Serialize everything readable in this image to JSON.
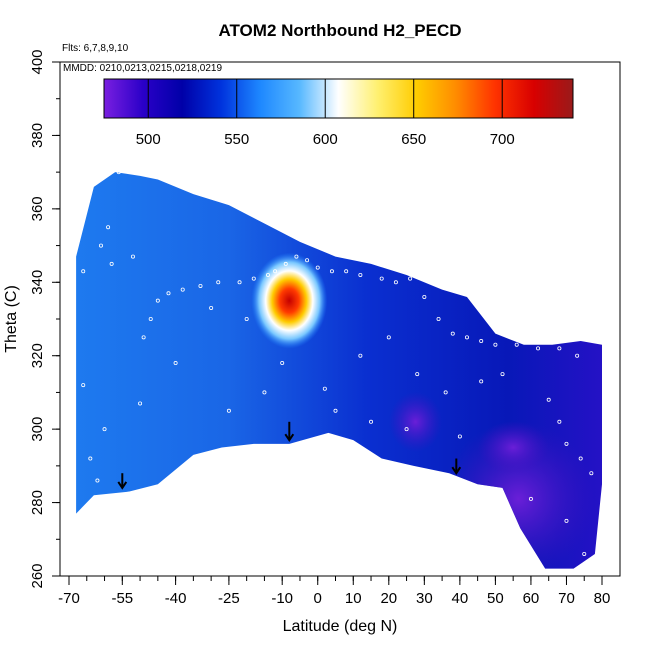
{
  "chart_data": {
    "type": "heatmap",
    "title": "ATOM2 Northbound H2_PECD",
    "flights_note": "Flts: 6,7,8,9,10",
    "dates_note": "MMDD: 0210,0213,0215,0218,0219",
    "xlabel": "Latitude (deg N)",
    "ylabel": "Theta (C)",
    "xlim": [
      -70,
      80
    ],
    "ylim": [
      260,
      400
    ],
    "x_tick_labels": [
      "-70",
      "-55",
      "-40",
      "-25",
      "-10",
      "0",
      "10",
      "20",
      "30",
      "40",
      "50",
      "60",
      "70",
      "80"
    ],
    "x_tick_values": [
      -70,
      -55,
      -40,
      -25,
      -10,
      0,
      10,
      20,
      30,
      40,
      50,
      60,
      70,
      80
    ],
    "y_tick_values": [
      260,
      280,
      300,
      320,
      340,
      360,
      380,
      400
    ],
    "y_tick_labels": [
      "260",
      "280",
      "300",
      "320",
      "340",
      "360",
      "380",
      "400"
    ],
    "colorbar": {
      "range": [
        475,
        740
      ],
      "tick_values": [
        500,
        550,
        600,
        650,
        700
      ],
      "tick_labels": [
        "500",
        "550",
        "600",
        "650",
        "700"
      ],
      "colors": [
        "#7a1fe0",
        "#2a00c8",
        "#0000a8",
        "#0033dd",
        "#1e88ff",
        "#57b8ff",
        "#ffffff",
        "#fff070",
        "#ffcc00",
        "#ff8c00",
        "#ff3300",
        "#d80000",
        "#9a1a1a"
      ]
    },
    "field": {
      "background_value": 535,
      "hotspot": {
        "lat": -8,
        "theta": 335,
        "peak_value": 705
      },
      "low_regions": [
        {
          "lat_range": [
            20,
            35
          ],
          "theta_range": [
            296,
            308
          ],
          "value": 492
        },
        {
          "lat_range": [
            35,
            78
          ],
          "theta_range": [
            262,
            300
          ],
          "value": 495
        },
        {
          "lat_range": [
            45,
            65
          ],
          "theta_range": [
            290,
            300
          ],
          "value": 500
        }
      ]
    },
    "coverage_boundary": [
      [
        -68,
        277
      ],
      [
        -63,
        282
      ],
      [
        -53,
        283
      ],
      [
        -45,
        285
      ],
      [
        -35,
        293
      ],
      [
        -27,
        295
      ],
      [
        -18,
        296
      ],
      [
        -8,
        296
      ],
      [
        3,
        299
      ],
      [
        10,
        297
      ],
      [
        18,
        292
      ],
      [
        27,
        290
      ],
      [
        37,
        288
      ],
      [
        45,
        285
      ],
      [
        52,
        284
      ],
      [
        57,
        273
      ],
      [
        64,
        262
      ],
      [
        72,
        262
      ],
      [
        78,
        266
      ],
      [
        80,
        285
      ],
      [
        80,
        323
      ],
      [
        74,
        324
      ],
      [
        66,
        323
      ],
      [
        58,
        323
      ],
      [
        50,
        326
      ],
      [
        42,
        336
      ],
      [
        35,
        338
      ],
      [
        25,
        342
      ],
      [
        15,
        345
      ],
      [
        5,
        347
      ],
      [
        -5,
        351
      ],
      [
        -15,
        356
      ],
      [
        -25,
        361
      ],
      [
        -35,
        364
      ],
      [
        -45,
        368
      ],
      [
        -50,
        369
      ],
      [
        -57,
        370
      ],
      [
        -63,
        366
      ],
      [
        -68,
        347
      ]
    ],
    "arrows": [
      {
        "lat": -55,
        "theta_top": 288,
        "theta_tip": 284
      },
      {
        "lat": -8,
        "theta_top": 302,
        "theta_tip": 297
      },
      {
        "lat": 39,
        "theta_top": 292,
        "theta_tip": 288
      }
    ],
    "sample_points": [
      [
        -66,
        343
      ],
      [
        -58,
        345
      ],
      [
        -52,
        347
      ],
      [
        -56,
        370
      ],
      [
        -59,
        355
      ],
      [
        -61,
        350
      ],
      [
        -49,
        325
      ],
      [
        -47,
        330
      ],
      [
        -45,
        335
      ],
      [
        -42,
        337
      ],
      [
        -38,
        338
      ],
      [
        -33,
        339
      ],
      [
        -28,
        340
      ],
      [
        -22,
        340
      ],
      [
        -18,
        341
      ],
      [
        -14,
        342
      ],
      [
        -12,
        343
      ],
      [
        -9,
        345
      ],
      [
        -6,
        347
      ],
      [
        -3,
        346
      ],
      [
        0,
        344
      ],
      [
        4,
        343
      ],
      [
        8,
        343
      ],
      [
        12,
        342
      ],
      [
        18,
        341
      ],
      [
        22,
        340
      ],
      [
        26,
        341
      ],
      [
        30,
        336
      ],
      [
        34,
        330
      ],
      [
        38,
        326
      ],
      [
        42,
        325
      ],
      [
        46,
        324
      ],
      [
        50,
        323
      ],
      [
        56,
        323
      ],
      [
        62,
        322
      ],
      [
        68,
        322
      ],
      [
        73,
        320
      ],
      [
        -30,
        333
      ],
      [
        -20,
        330
      ],
      [
        -40,
        318
      ],
      [
        -50,
        307
      ],
      [
        -60,
        300
      ],
      [
        -64,
        292
      ],
      [
        -62,
        286
      ],
      [
        -66,
        312
      ],
      [
        -10,
        318
      ],
      [
        2,
        311
      ],
      [
        12,
        320
      ],
      [
        20,
        325
      ],
      [
        28,
        315
      ],
      [
        36,
        310
      ],
      [
        46,
        313
      ],
      [
        52,
        315
      ],
      [
        65,
        308
      ],
      [
        68,
        302
      ],
      [
        70,
        296
      ],
      [
        74,
        292
      ],
      [
        77,
        288
      ],
      [
        60,
        281
      ],
      [
        70,
        275
      ],
      [
        75,
        266
      ],
      [
        -25,
        305
      ],
      [
        -15,
        310
      ],
      [
        5,
        305
      ],
      [
        15,
        302
      ],
      [
        25,
        300
      ],
      [
        40,
        298
      ]
    ]
  }
}
